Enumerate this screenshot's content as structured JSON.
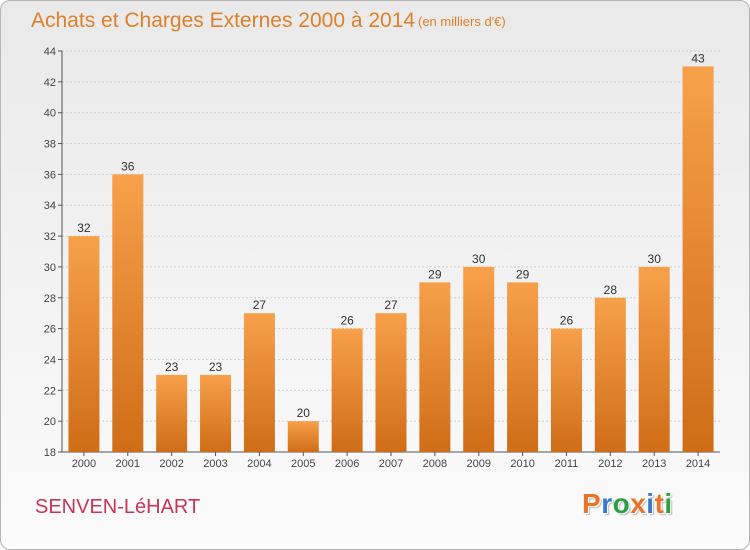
{
  "colors": {
    "accent": "#e07f2a",
    "bar_top": "#f7a04a",
    "bar_bottom": "#d06d17",
    "town": "#c8345a",
    "logo_letters": [
      "#e8742a",
      "#3a78c8",
      "#2e9e44",
      "#e8742a",
      "#3a78c8",
      "#e8742a",
      "#2e9e44"
    ]
  },
  "header": {
    "title": "Achats et Charges Externes 2000 à 2014",
    "subtitle": "(en milliers d'€)"
  },
  "footer": {
    "town": "SENVEN-LéHART",
    "logo_letters": [
      "P",
      "r",
      "o",
      "x",
      "i",
      "t",
      "i"
    ]
  },
  "chart_data": {
    "type": "bar",
    "categories": [
      "2000",
      "2001",
      "2002",
      "2003",
      "2004",
      "2005",
      "2006",
      "2007",
      "2008",
      "2009",
      "2010",
      "2011",
      "2012",
      "2013",
      "2014"
    ],
    "values": [
      32,
      36,
      23,
      23,
      27,
      20,
      26,
      27,
      29,
      30,
      29,
      26,
      28,
      30,
      43
    ],
    "title": "Achats et Charges Externes 2000 à 2014",
    "xlabel": "",
    "ylabel": "",
    "ylim": [
      18,
      44
    ],
    "yticks": [
      18,
      20,
      22,
      24,
      26,
      28,
      30,
      32,
      34,
      36,
      38,
      40,
      42,
      44
    ],
    "grid": true,
    "data_labels": true
  }
}
